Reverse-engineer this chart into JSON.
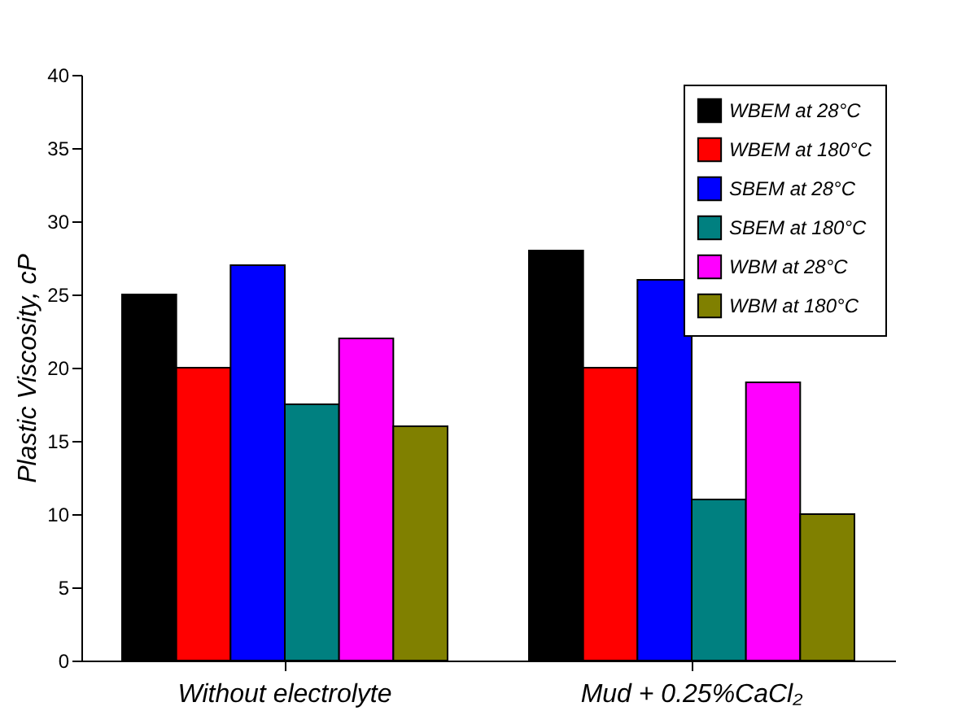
{
  "chart_data": {
    "type": "bar",
    "ylabel": "Plastic Viscosity, cP",
    "categories": [
      "Without electrolyte",
      "Mud + 0.25%CaCl₂"
    ],
    "series": [
      {
        "name": "WBEM at 28°C",
        "color": "#000000",
        "values": [
          25,
          28
        ]
      },
      {
        "name": "WBEM at 180°C",
        "color": "#ff0000",
        "values": [
          20,
          20
        ]
      },
      {
        "name": "SBEM at 28°C",
        "color": "#0000ff",
        "values": [
          27,
          26
        ]
      },
      {
        "name": "SBEM at 180°C",
        "color": "#008080",
        "values": [
          17.5,
          11
        ]
      },
      {
        "name": "WBM at 28°C",
        "color": "#ff00ff",
        "values": [
          22,
          19
        ]
      },
      {
        "name": "WBM at 180°C",
        "color": "#808000",
        "values": [
          16,
          10
        ]
      }
    ],
    "ylim": [
      0,
      40
    ],
    "yticks": [
      0,
      5,
      10,
      15,
      20,
      25,
      30,
      35,
      40
    ],
    "grid": false,
    "legend": "top right"
  }
}
